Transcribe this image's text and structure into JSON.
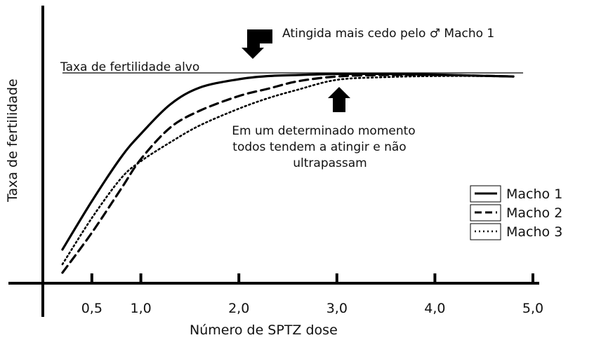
{
  "chart_data": {
    "type": "line",
    "title": "",
    "xlabel": "Número de SPTZ dose",
    "ylabel": "Taxa de fertilidade",
    "xlim": [
      0,
      5.0
    ],
    "ylim": [
      0,
      1.0
    ],
    "x_ticks": [
      {
        "value": 0.5,
        "label": "0,5"
      },
      {
        "value": 1.0,
        "label": "1,0"
      },
      {
        "value": 2.0,
        "label": "2,0"
      },
      {
        "value": 3.0,
        "label": "3,0"
      },
      {
        "value": 4.0,
        "label": "4,0"
      },
      {
        "value": 5.0,
        "label": "5,0"
      }
    ],
    "grid": false,
    "legend_position": "right",
    "target_line": {
      "label": "Taxa de fertilidade alvo",
      "y": 1.0,
      "x_start": 0.2,
      "x_end": 4.9
    },
    "series": [
      {
        "name": "Macho 1",
        "style": "solid",
        "x": [
          0.2,
          0.5,
          0.8,
          1.0,
          1.3,
          1.6,
          2.0,
          2.3,
          2.6,
          3.0,
          3.5,
          4.0,
          4.5,
          4.8
        ],
        "y": [
          0.16,
          0.39,
          0.6,
          0.71,
          0.85,
          0.93,
          0.97,
          0.985,
          0.99,
          0.995,
          0.995,
          0.992,
          0.986,
          0.983
        ]
      },
      {
        "name": "Macho 2",
        "style": "dashed",
        "x": [
          0.2,
          0.5,
          0.8,
          1.0,
          1.3,
          1.6,
          2.0,
          2.3,
          2.6,
          3.0,
          3.5,
          4.0,
          4.5,
          4.8
        ],
        "y": [
          0.05,
          0.24,
          0.45,
          0.59,
          0.74,
          0.82,
          0.89,
          0.925,
          0.96,
          0.983,
          0.99,
          0.99,
          0.986,
          0.983
        ]
      },
      {
        "name": "Macho 3",
        "style": "dotted",
        "x": [
          0.2,
          0.5,
          0.8,
          1.0,
          1.3,
          1.6,
          2.0,
          2.3,
          2.6,
          3.0,
          3.5,
          4.0,
          4.5,
          4.8
        ],
        "y": [
          0.09,
          0.31,
          0.5,
          0.58,
          0.67,
          0.75,
          0.83,
          0.88,
          0.92,
          0.967,
          0.98,
          0.985,
          0.985,
          0.983
        ]
      }
    ],
    "annotations": [
      {
        "id": "top",
        "lines": [
          "Atingida mais cedo pelo ♂ Macho 1"
        ]
      },
      {
        "id": "middle",
        "lines": [
          "Em um determinado momento",
          "todos tendem a atingir e não",
          "ultrapassam"
        ]
      }
    ]
  }
}
